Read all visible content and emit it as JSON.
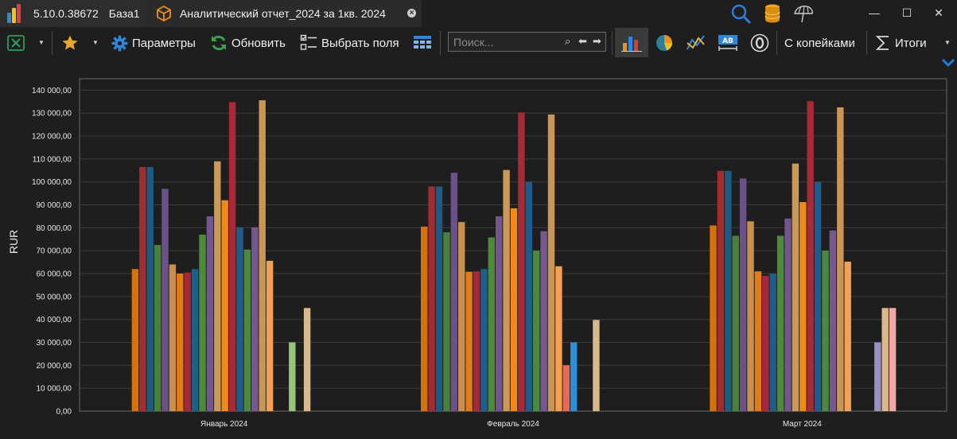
{
  "titlebar": {
    "app_version": "5.10.0.38672",
    "database": "База1",
    "document_title": "Аналитический отчет_2024 за 1кв. 2024",
    "close_tab": "×"
  },
  "window_controls": {
    "minimize": "—",
    "maximize": "☐",
    "close": "✕"
  },
  "toolbar": {
    "parameters_label": "Параметры",
    "refresh_label": "Обновить",
    "choose_fields_label": "Выбрать поля",
    "search_placeholder": "Поиск...",
    "with_kopecks_label": "С копейками",
    "totals_label": "Итоги"
  },
  "icons": {
    "excel": "excel-icon",
    "favorites": "star-icon",
    "parameters": "gear-icon",
    "refresh": "refresh-icon",
    "choose_fields": "checklist-icon",
    "table": "table-icon",
    "search": "magnifier-icon",
    "prev": "arrow-left-icon",
    "next": "arrow-right-icon",
    "bar_chart": "bar-chart-icon",
    "pie_chart": "pie-chart-icon",
    "line_chart": "line-chart-icon",
    "labels": "ab-labels-icon",
    "zero": "zero-icon",
    "sum": "sigma-icon",
    "title_search": "search-icon",
    "database": "database-icon",
    "umbrella": "umbrella-icon"
  },
  "colors": {
    "background": "#1e1e1e",
    "plot_border": "#6b6b6b",
    "grid": "#3c3c3c",
    "text": "#e8e8e8",
    "accent_blue": "#1e7fd8",
    "accent_orange": "#e8911c"
  },
  "chart_data": {
    "type": "bar",
    "ylabel": "RUR",
    "ylim": [
      0,
      145000
    ],
    "ytick_step": 10000,
    "yticks": [
      "0,00",
      "10 000,00",
      "20 000,00",
      "30 000,00",
      "40 000,00",
      "50 000,00",
      "60 000,00",
      "70 000,00",
      "80 000,00",
      "90 000,00",
      "100 000,00",
      "110 000,00",
      "120 000,00",
      "130 000,00",
      "140 000,00"
    ],
    "grid": true,
    "categories": [
      "Январь 2024",
      "Февраль 2024",
      "Март 2024"
    ],
    "series": [
      {
        "color": "#d4720c",
        "values": [
          62000,
          80500,
          81000
        ]
      },
      {
        "color": "#a02d32",
        "values": [
          106500,
          98000,
          104800
        ]
      },
      {
        "color": "#1f5a80",
        "values": [
          106500,
          98000,
          104800
        ]
      },
      {
        "color": "#4a8038",
        "values": [
          72500,
          78000,
          76500
        ]
      },
      {
        "color": "#6a5288",
        "values": [
          97000,
          104000,
          101500
        ]
      },
      {
        "color": "#c8904c",
        "values": [
          64000,
          82500,
          82800
        ]
      },
      {
        "color": "#e27c14",
        "values": [
          60000,
          60800,
          61000
        ]
      },
      {
        "color": "#a8283a",
        "values": [
          60500,
          61000,
          59000
        ]
      },
      {
        "color": "#1f5e88",
        "values": [
          62000,
          62000,
          60000
        ]
      },
      {
        "color": "#4e8a3c",
        "values": [
          77000,
          75800,
          76500
        ]
      },
      {
        "color": "#73568e",
        "values": [
          85000,
          85000,
          84000
        ]
      },
      {
        "color": "#cc9a58",
        "values": [
          109000,
          105200,
          108000
        ]
      },
      {
        "color": "#f08a14",
        "values": [
          92000,
          88500,
          91200
        ]
      },
      {
        "color": "#a72a36",
        "values": [
          134800,
          130300,
          135200
        ]
      },
      {
        "color": "#1f5c8c",
        "values": [
          80200,
          100000,
          100000
        ]
      },
      {
        "color": "#4b8a3d",
        "values": [
          70500,
          70000,
          70000
        ]
      },
      {
        "color": "#75588e",
        "values": [
          80200,
          78500,
          78800
        ]
      },
      {
        "color": "#c99656",
        "values": [
          135600,
          129400,
          132500
        ]
      },
      {
        "color": "#f5a050",
        "values": [
          65600,
          63200,
          65200
        ]
      },
      {
        "color": "#e86a5a",
        "values": [
          null,
          20000,
          null
        ]
      },
      {
        "color": "#2a8fd6",
        "values": [
          null,
          30000,
          null
        ]
      },
      {
        "color": "#96c478",
        "values": [
          30000,
          null,
          null
        ]
      },
      {
        "color": "#9d8ec4",
        "values": [
          null,
          null,
          30000
        ]
      },
      {
        "color": "#d9b98a",
        "values": [
          45000,
          39800,
          45000
        ]
      },
      {
        "color": "#f2a8a8",
        "values": [
          null,
          null,
          45000
        ]
      }
    ]
  }
}
